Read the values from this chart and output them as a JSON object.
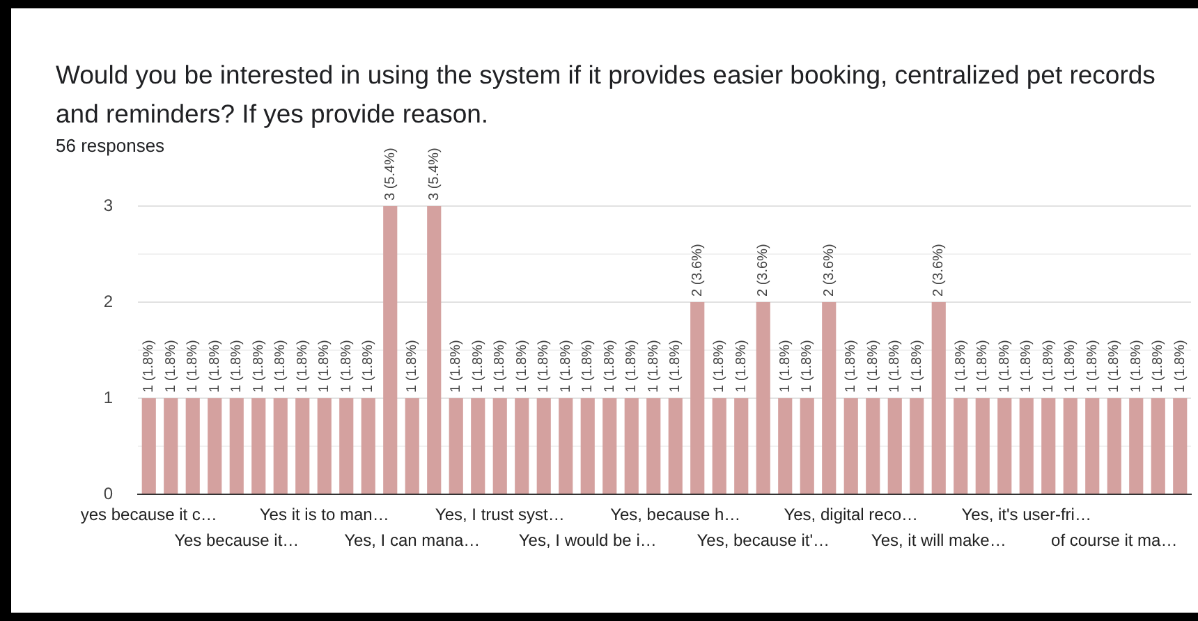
{
  "chart_data": {
    "type": "bar",
    "title": "Would you be interested in using the system if it provides easier booking, centralized pet records and reminders? If yes provide reason.",
    "subtitle": "56 responses",
    "categories": [
      "yes because it c…",
      null,
      null,
      null,
      "Yes because it…",
      null,
      null,
      null,
      "Yes it is to man…",
      null,
      null,
      null,
      "Yes, I can mana…",
      null,
      null,
      null,
      "Yes, I trust syst…",
      null,
      null,
      null,
      "Yes, I would be i…",
      null,
      null,
      null,
      "Yes, because h…",
      null,
      null,
      null,
      "Yes, because it'…",
      null,
      null,
      null,
      "Yes, digital reco…",
      null,
      null,
      null,
      "Yes, it will make…",
      null,
      null,
      null,
      "Yes, it's user-fri…",
      null,
      null,
      null,
      "of course it ma…",
      null,
      null,
      null
    ],
    "values": [
      1,
      1,
      1,
      1,
      1,
      1,
      1,
      1,
      1,
      1,
      1,
      3,
      1,
      3,
      1,
      1,
      1,
      1,
      1,
      1,
      1,
      1,
      1,
      1,
      1,
      2,
      1,
      1,
      2,
      1,
      1,
      2,
      1,
      1,
      1,
      1,
      2,
      1,
      1,
      1,
      1,
      1,
      1,
      1,
      1,
      1,
      1,
      1
    ],
    "value_labels": [
      "1 (1.8%)",
      "1 (1.8%)",
      "1 (1.8%)",
      "1 (1.8%)",
      "1 (1.8%)",
      "1 (1.8%)",
      "1 (1.8%)",
      "1 (1.8%)",
      "1 (1.8%)",
      "1 (1.8%)",
      "1 (1.8%)",
      "3 (5.4%)",
      "1 (1.8%)",
      "3 (5.4%)",
      "1 (1.8%)",
      "1 (1.8%)",
      "1 (1.8%)",
      "1 (1.8%)",
      "1 (1.8%)",
      "1 (1.8%)",
      "1 (1.8%)",
      "1 (1.8%)",
      "1 (1.8%)",
      "1 (1.8%)",
      "1 (1.8%)",
      "2 (3.6%)",
      "1 (1.8%)",
      "1 (1.8%)",
      "2 (3.6%)",
      "1 (1.8%)",
      "1 (1.8%)",
      "2 (3.6%)",
      "1 (1.8%)",
      "1 (1.8%)",
      "1 (1.8%)",
      "1 (1.8%)",
      "2 (3.6%)",
      "1 (1.8%)",
      "1 (1.8%)",
      "1 (1.8%)",
      "1 (1.8%)",
      "1 (1.8%)",
      "1 (1.8%)",
      "1 (1.8%)",
      "1 (1.8%)",
      "1 (1.8%)",
      "1 (1.8%)",
      "1 (1.8%)"
    ],
    "color": "#d4a19f",
    "ylim": [
      0,
      3
    ],
    "yticks": [
      0,
      {
        "value": 0.5,
        "label": null
      },
      1,
      {
        "value": 1.5,
        "label": null
      },
      2,
      {
        "value": 2.5,
        "label": null
      },
      3
    ],
    "grid": "y"
  }
}
